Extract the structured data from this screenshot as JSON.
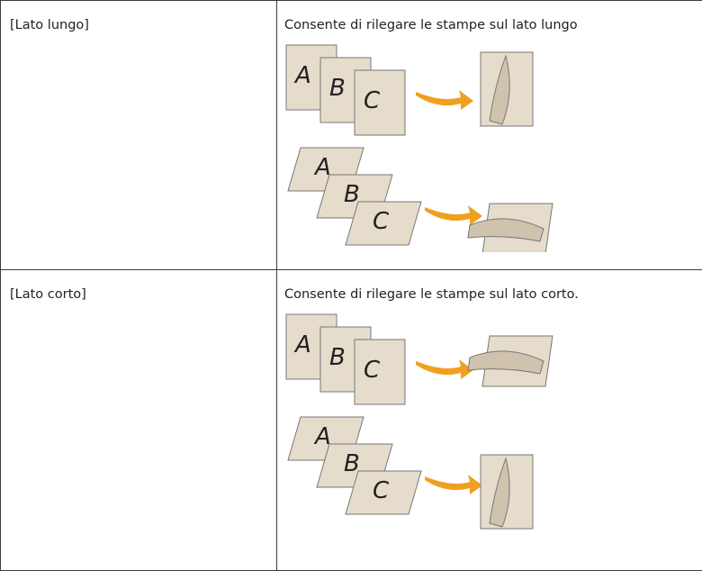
{
  "table": {
    "rows": [
      [
        "[Lato lungo]",
        "Consente di rilegare le stampe sul lato lungo",
        [
          [
            "A",
            "B",
            "C"
          ],
          [
            "A",
            "B",
            "C"
          ]
        ]
      ],
      [
        "[Lato corto]",
        "Consente di rilegare le stampe sul lato corto.",
        [
          [
            "A",
            "B",
            "C"
          ],
          [
            "A",
            "B",
            "C"
          ]
        ]
      ]
    ]
  }
}
